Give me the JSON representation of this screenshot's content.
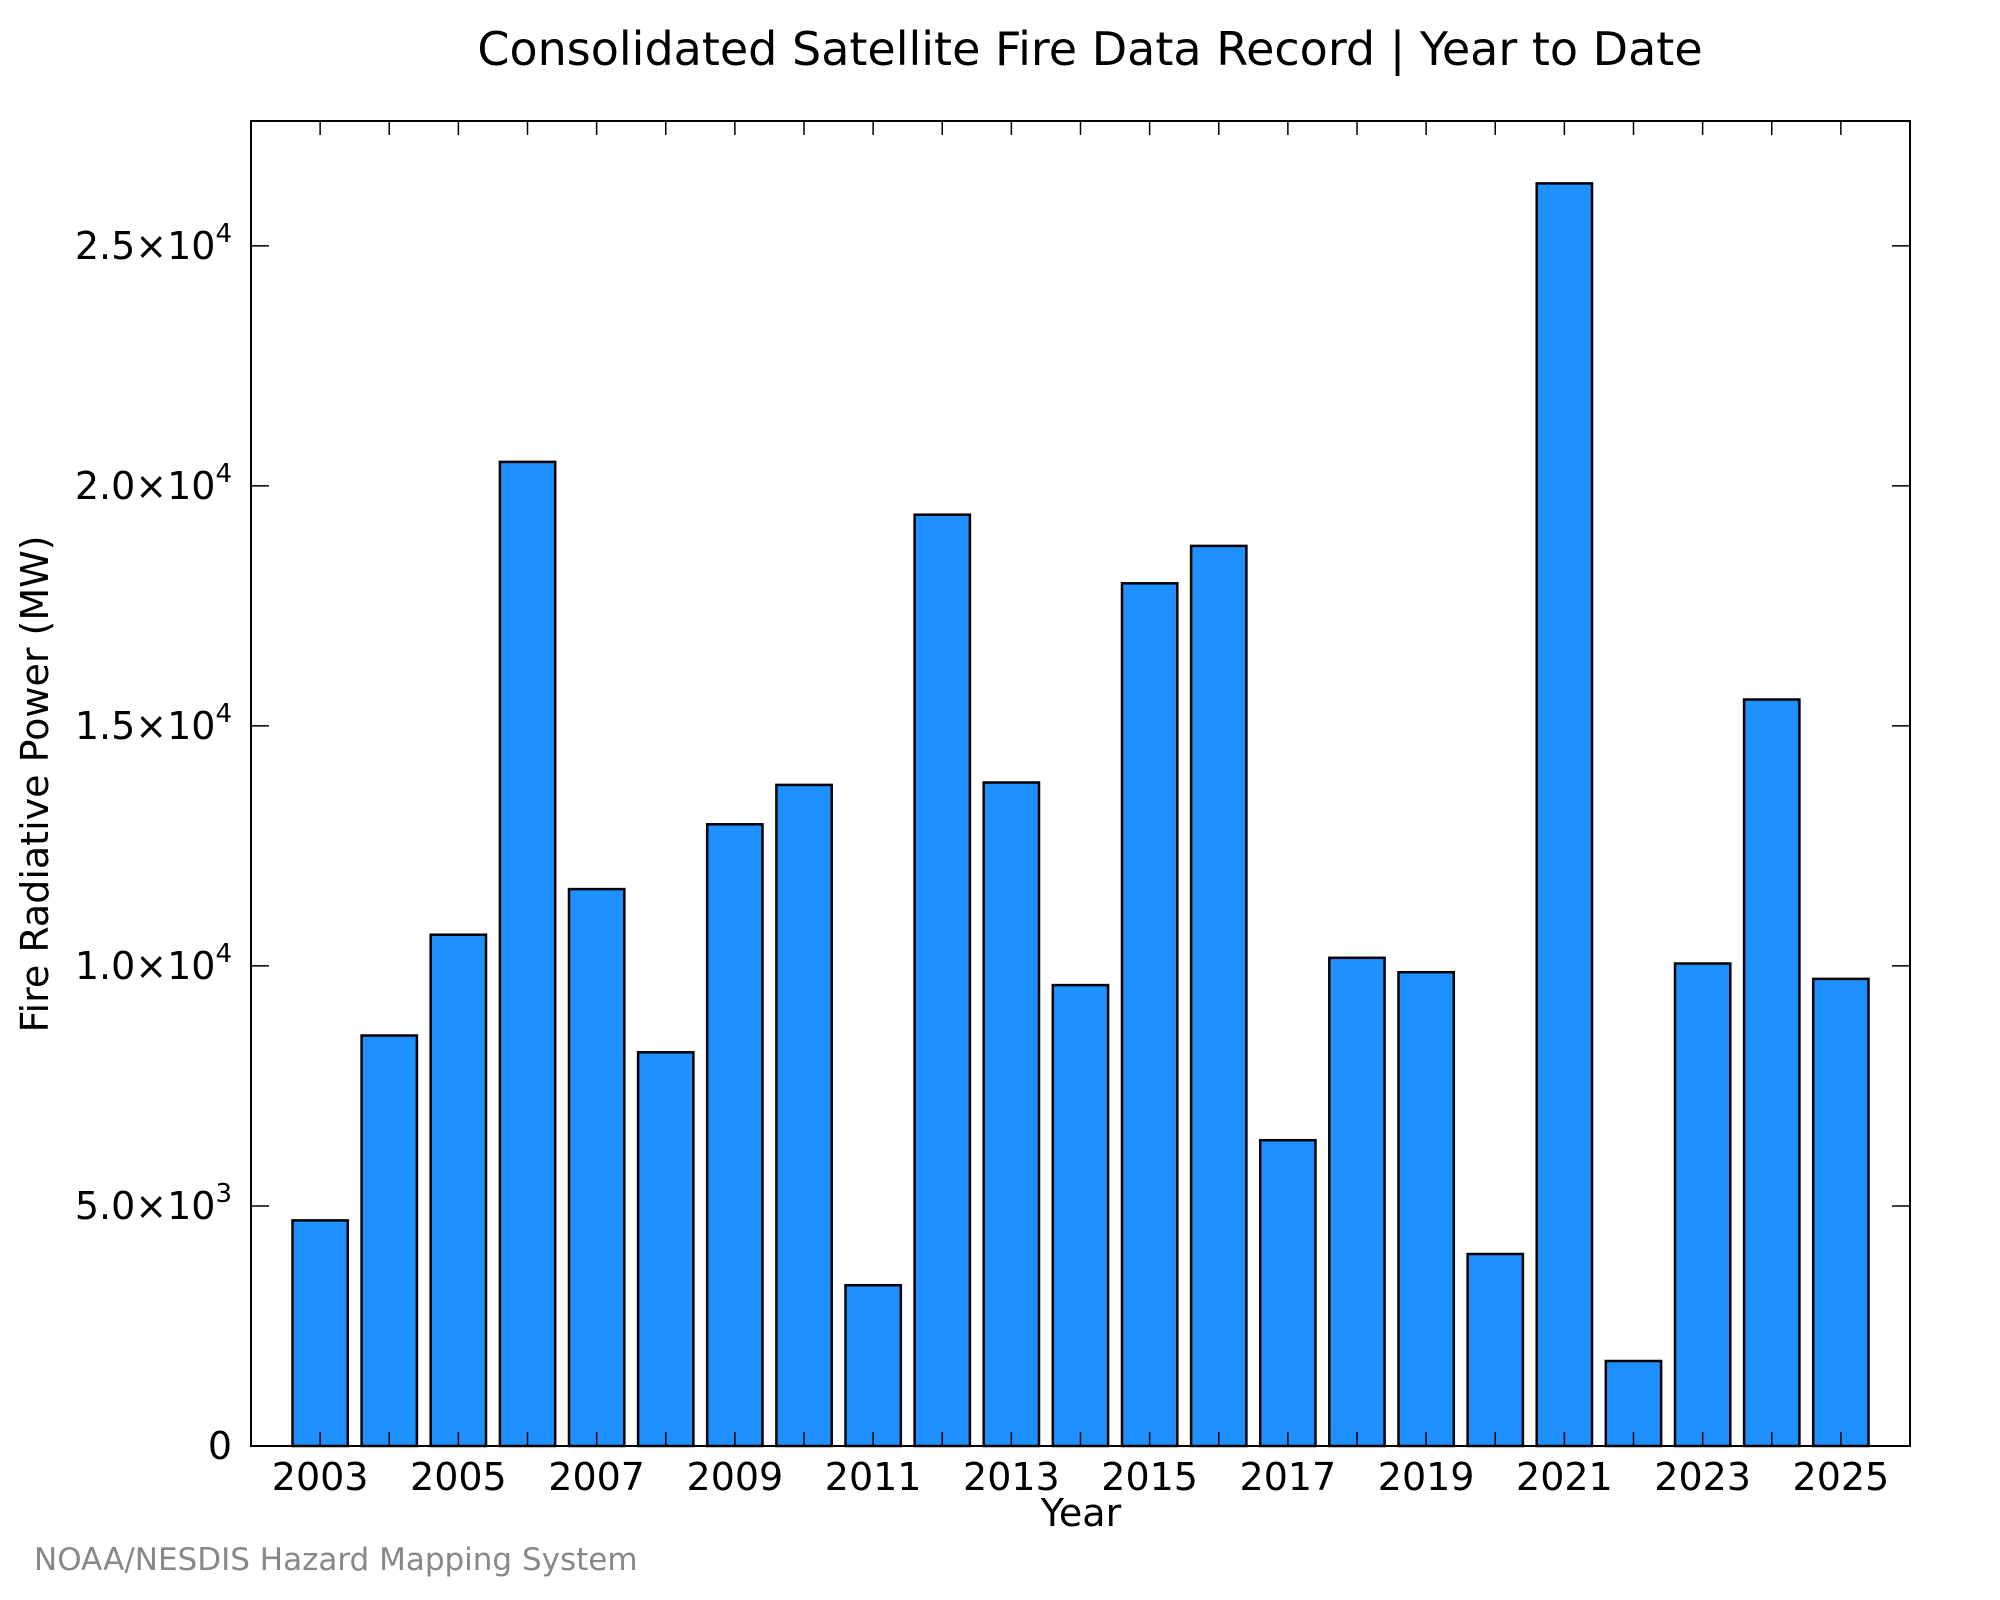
{
  "colors": {
    "bar": "#1E90FF",
    "bar_outline": "#000000",
    "frame": "#000000",
    "source_text": "#888888"
  },
  "chart_data": {
    "type": "bar",
    "title": "Consolidated Satellite Fire Data Record | Year to Date",
    "xlabel": "Year",
    "ylabel": "Fire Radiative Power (MW)",
    "categories": [
      "2003",
      "2004",
      "2005",
      "2006",
      "2007",
      "2008",
      "2009",
      "2010",
      "2011",
      "2012",
      "2013",
      "2014",
      "2015",
      "2016",
      "2017",
      "2018",
      "2019",
      "2020",
      "2021",
      "2022",
      "2023",
      "2024",
      "2025"
    ],
    "values": [
      4700,
      8550,
      10650,
      20500,
      11600,
      8200,
      12950,
      13770,
      3350,
      19400,
      13820,
      9600,
      17970,
      18750,
      6370,
      10170,
      9870,
      4000,
      26300,
      1770,
      10050,
      15550,
      9730
    ],
    "x_tick_labels": [
      "2003",
      "2005",
      "2007",
      "2009",
      "2011",
      "2013",
      "2015",
      "2017",
      "2019",
      "2021",
      "2023",
      "2025"
    ],
    "y_ticks": [
      {
        "value": 0,
        "mantissa": "0",
        "exp": ""
      },
      {
        "value": 5000,
        "mantissa": "5.0×10",
        "exp": "3"
      },
      {
        "value": 10000,
        "mantissa": "1.0×10",
        "exp": "4"
      },
      {
        "value": 15000,
        "mantissa": "1.5×10",
        "exp": "4"
      },
      {
        "value": 20000,
        "mantissa": "2.0×10",
        "exp": "4"
      },
      {
        "value": 25000,
        "mantissa": "2.5×10",
        "exp": "4"
      }
    ],
    "ylim": [
      0,
      27600
    ],
    "xlim": [
      2002,
      2026
    ],
    "grid": false,
    "legend": "none"
  },
  "source_note": "NOAA/NESDIS Hazard Mapping System"
}
